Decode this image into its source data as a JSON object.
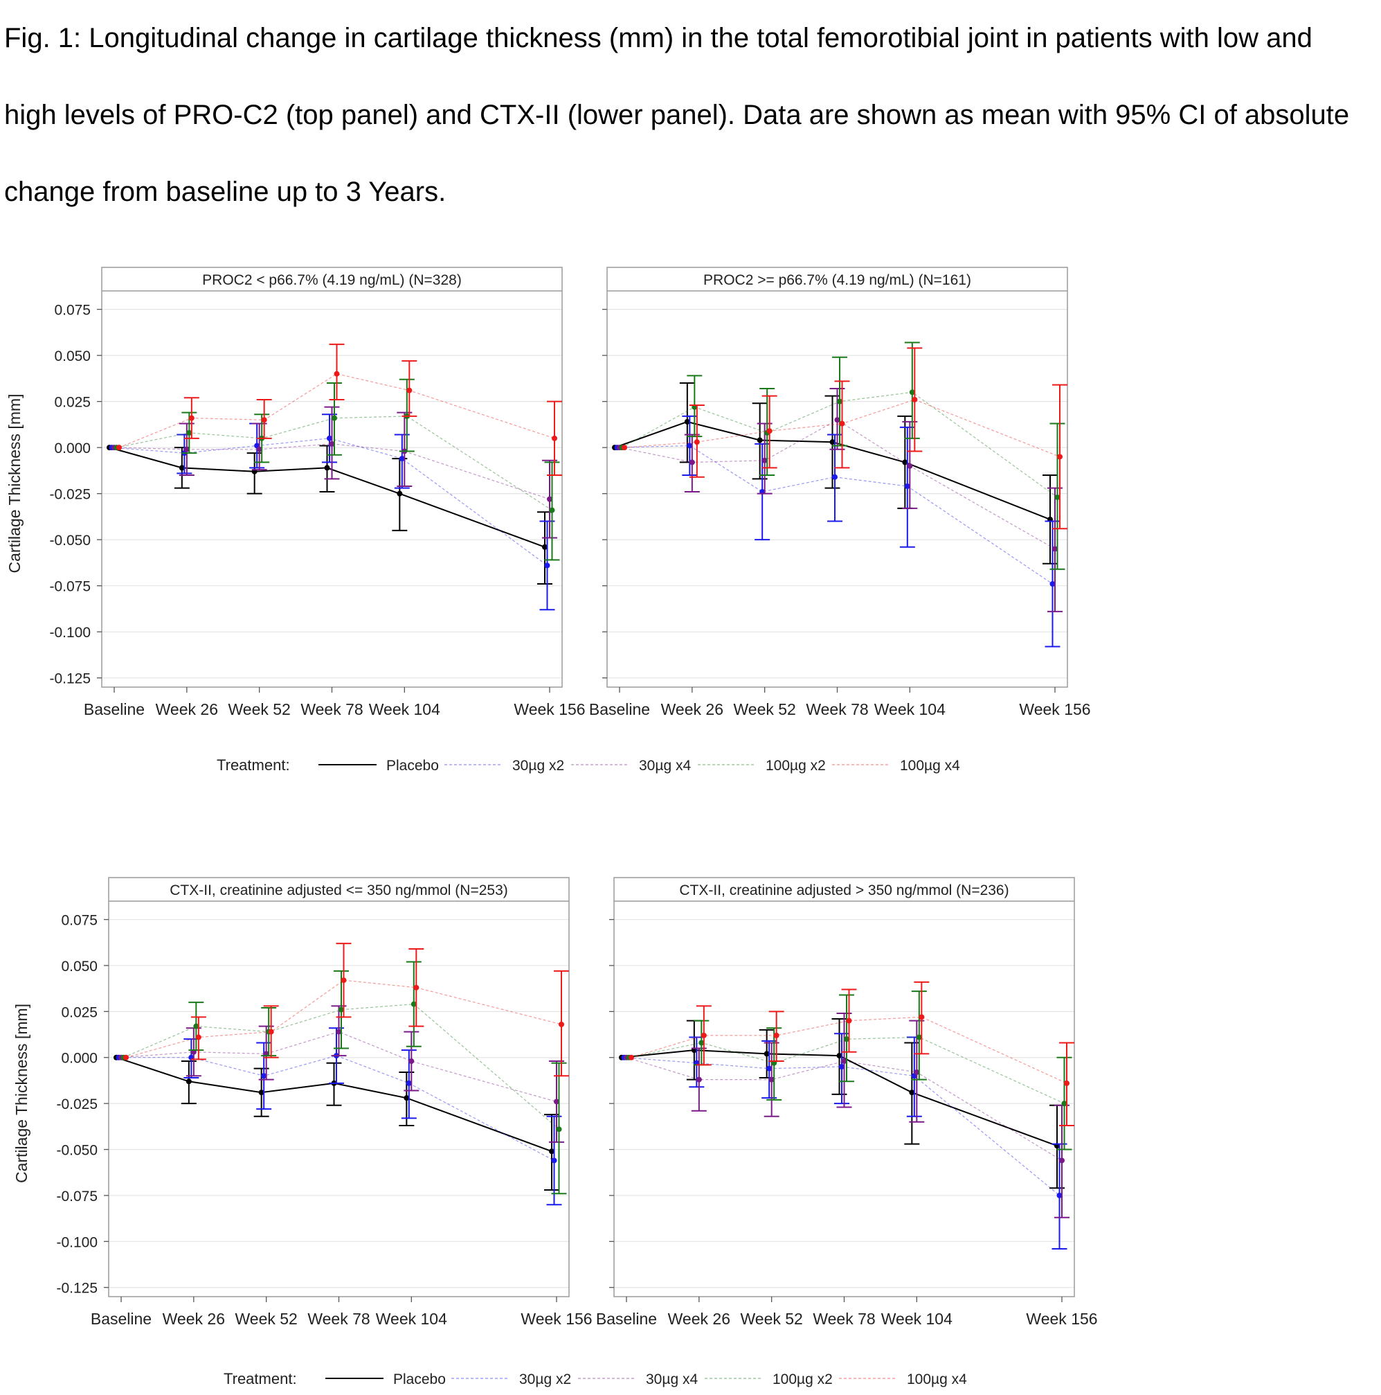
{
  "caption": {
    "line1": "Fig. 1: Longitudinal change in cartilage thickness (mm) in the total femorotibial joint in patients with low and",
    "line2": "high levels of PRO-C2 (top panel) and CTX-II (lower panel). Data are shown as mean with 95% CI of absolute",
    "line3": "change from baseline up to 3 Years."
  },
  "colors": {
    "Placebo": "#000000",
    "30µg x2": "#1a1aee",
    "30µg x4": "#7a1a88",
    "100µg x2": "#1a7a1a",
    "100µg x4": "#ee1a1a",
    "frame": "#9a9a9a",
    "grid": "#e4e4e4"
  },
  "legend": {
    "title": "Treatment:",
    "entries": [
      "Placebo",
      "30µg x2",
      "30µg x4",
      "100µg x2",
      "100µg x4"
    ]
  },
  "chart_data": [
    {
      "type": "line",
      "title": "PROC2 < p66.7% (4.19 ng/mL) (N=328)",
      "ylabel": "Cartilage Thickness [mm]",
      "xlabel": "",
      "ylim": [
        -0.13,
        0.085
      ],
      "yticks": [
        "0.075",
        "0.050",
        "0.025",
        "0.000",
        "-0.025",
        "-0.050",
        "-0.075",
        "-0.100",
        "-0.125"
      ],
      "categories": [
        "Baseline",
        "Week 26",
        "Week 52",
        "Week 78",
        "Week 104",
        "Week 156"
      ],
      "x_weeks": [
        0,
        26,
        52,
        78,
        104,
        156
      ],
      "grid": true,
      "series": [
        {
          "name": "Placebo",
          "values": [
            0.0,
            -0.011,
            -0.013,
            -0.011,
            -0.025,
            -0.054
          ],
          "lower": [
            0.0,
            -0.022,
            -0.025,
            -0.024,
            -0.045,
            -0.074
          ],
          "upper": [
            0.0,
            0.0,
            -0.003,
            0.001,
            -0.006,
            -0.035
          ]
        },
        {
          "name": "30µg x2",
          "values": [
            0.0,
            -0.003,
            0.001,
            0.005,
            -0.006,
            -0.064
          ],
          "lower": [
            0.0,
            -0.014,
            -0.011,
            -0.008,
            -0.022,
            -0.088
          ],
          "upper": [
            0.0,
            0.007,
            0.013,
            0.018,
            0.007,
            -0.04
          ]
        },
        {
          "name": "30µg x4",
          "values": [
            0.0,
            -0.001,
            -0.001,
            0.002,
            -0.002,
            -0.028
          ],
          "lower": [
            0.0,
            -0.015,
            -0.012,
            -0.017,
            -0.021,
            -0.049
          ],
          "upper": [
            0.0,
            0.013,
            0.013,
            0.022,
            0.019,
            -0.007
          ]
        },
        {
          "name": "100µg x2",
          "values": [
            0.0,
            0.008,
            0.005,
            0.016,
            0.017,
            -0.034
          ],
          "lower": [
            0.0,
            -0.003,
            -0.008,
            -0.004,
            -0.002,
            -0.061
          ],
          "upper": [
            0.0,
            0.019,
            0.018,
            0.035,
            0.037,
            -0.008
          ]
        },
        {
          "name": "100µg x4",
          "values": [
            0.0,
            0.016,
            0.015,
            0.04,
            0.031,
            0.005
          ],
          "lower": [
            0.0,
            0.005,
            0.005,
            0.026,
            0.017,
            -0.015
          ],
          "upper": [
            0.0,
            0.027,
            0.026,
            0.056,
            0.047,
            0.025
          ]
        }
      ]
    },
    {
      "type": "line",
      "title": "PROC2 >= p66.7% (4.19 ng/mL) (N=161)",
      "ylabel": "",
      "xlabel": "",
      "ylim": [
        -0.13,
        0.085
      ],
      "categories": [
        "Baseline",
        "Week 26",
        "Week 52",
        "Week 78",
        "Week 104",
        "Week 156"
      ],
      "x_weeks": [
        0,
        26,
        52,
        78,
        104,
        156
      ],
      "grid": true,
      "series": [
        {
          "name": "Placebo",
          "values": [
            0.0,
            0.014,
            0.004,
            0.003,
            -0.008,
            -0.039
          ],
          "lower": [
            0.0,
            -0.008,
            -0.017,
            -0.022,
            -0.033,
            -0.063
          ],
          "upper": [
            0.0,
            0.035,
            0.024,
            0.028,
            0.017,
            -0.015
          ]
        },
        {
          "name": "30µg x2",
          "values": [
            0.0,
            0.001,
            -0.024,
            -0.016,
            -0.021,
            -0.074
          ],
          "lower": [
            0.0,
            -0.015,
            -0.05,
            -0.04,
            -0.054,
            -0.108
          ],
          "upper": [
            0.0,
            0.017,
            0.002,
            0.007,
            0.011,
            -0.04
          ]
        },
        {
          "name": "30µg x4",
          "values": [
            0.0,
            -0.008,
            -0.007,
            0.015,
            -0.01,
            -0.055
          ],
          "lower": [
            0.0,
            -0.024,
            -0.025,
            -0.001,
            -0.033,
            -0.089
          ],
          "upper": [
            0.0,
            0.007,
            0.013,
            0.032,
            0.014,
            -0.022
          ]
        },
        {
          "name": "100µg x2",
          "values": [
            0.0,
            0.022,
            0.008,
            0.025,
            0.03,
            -0.027
          ],
          "lower": [
            0.0,
            0.006,
            -0.015,
            0.001,
            0.005,
            -0.066
          ],
          "upper": [
            0.0,
            0.039,
            0.032,
            0.049,
            0.057,
            0.013
          ]
        },
        {
          "name": "100µg x4",
          "values": [
            0.0,
            0.003,
            0.009,
            0.013,
            0.026,
            -0.005
          ],
          "lower": [
            0.0,
            -0.016,
            -0.011,
            -0.011,
            -0.002,
            -0.044
          ],
          "upper": [
            0.0,
            0.023,
            0.028,
            0.036,
            0.054,
            0.034
          ]
        }
      ]
    },
    {
      "type": "line",
      "title": "CTX-II, creatinine adjusted <= 350 ng/mmol (N=253)",
      "ylabel": "Cartilage Thickness [mm]",
      "xlabel": "",
      "ylim": [
        -0.13,
        0.085
      ],
      "yticks": [
        "0.075",
        "0.050",
        "0.025",
        "0.000",
        "-0.025",
        "-0.050",
        "-0.075",
        "-0.100",
        "-0.125"
      ],
      "categories": [
        "Baseline",
        "Week 26",
        "Week 52",
        "Week 78",
        "Week 104",
        "Week 156"
      ],
      "x_weeks": [
        0,
        26,
        52,
        78,
        104,
        156
      ],
      "grid": true,
      "series": [
        {
          "name": "Placebo",
          "values": [
            0.0,
            -0.013,
            -0.019,
            -0.014,
            -0.022,
            -0.051
          ],
          "lower": [
            0.0,
            -0.025,
            -0.032,
            -0.026,
            -0.037,
            -0.072
          ],
          "upper": [
            0.0,
            -0.002,
            -0.006,
            -0.003,
            -0.008,
            -0.031
          ]
        },
        {
          "name": "30µg x2",
          "values": [
            0.0,
            0.0,
            -0.01,
            0.001,
            -0.014,
            -0.056
          ],
          "lower": [
            0.0,
            -0.011,
            -0.028,
            -0.014,
            -0.033,
            -0.08
          ],
          "upper": [
            0.0,
            0.01,
            0.008,
            0.016,
            0.004,
            -0.032
          ]
        },
        {
          "name": "30µg x4",
          "values": [
            0.0,
            0.003,
            0.002,
            0.014,
            -0.002,
            -0.024
          ],
          "lower": [
            0.0,
            -0.01,
            -0.012,
            0.001,
            -0.018,
            -0.046
          ],
          "upper": [
            0.0,
            0.016,
            0.017,
            0.028,
            0.014,
            -0.002
          ]
        },
        {
          "name": "100µg x2",
          "values": [
            0.0,
            0.017,
            0.014,
            0.026,
            0.029,
            -0.039
          ],
          "lower": [
            0.0,
            0.004,
            0.001,
            0.005,
            0.006,
            -0.074
          ],
          "upper": [
            0.0,
            0.03,
            0.027,
            0.047,
            0.052,
            -0.003
          ]
        },
        {
          "name": "100µg x4",
          "values": [
            0.0,
            0.011,
            0.014,
            0.042,
            0.038,
            0.018
          ],
          "lower": [
            0.0,
            -0.001,
            0.0,
            0.022,
            0.017,
            -0.01
          ],
          "upper": [
            0.0,
            0.022,
            0.028,
            0.062,
            0.059,
            0.047
          ]
        }
      ]
    },
    {
      "type": "line",
      "title": "CTX-II, creatinine adjusted > 350 ng/mmol (N=236)",
      "ylabel": "",
      "xlabel": "",
      "ylim": [
        -0.13,
        0.085
      ],
      "categories": [
        "Baseline",
        "Week 26",
        "Week 52",
        "Week 78",
        "Week 104",
        "Week 156"
      ],
      "x_weeks": [
        0,
        26,
        52,
        78,
        104,
        156
      ],
      "grid": true,
      "series": [
        {
          "name": "Placebo",
          "values": [
            0.0,
            0.004,
            0.002,
            0.001,
            -0.019,
            -0.048
          ],
          "lower": [
            0.0,
            -0.012,
            -0.011,
            -0.02,
            -0.047,
            -0.071
          ],
          "upper": [
            0.0,
            0.02,
            0.015,
            0.021,
            0.008,
            -0.026
          ]
        },
        {
          "name": "30µg x2",
          "values": [
            0.0,
            -0.003,
            -0.006,
            -0.005,
            -0.01,
            -0.075
          ],
          "lower": [
            0.0,
            -0.016,
            -0.022,
            -0.025,
            -0.032,
            -0.104
          ],
          "upper": [
            0.0,
            0.011,
            0.009,
            0.013,
            0.011,
            -0.047
          ]
        },
        {
          "name": "30µg x4",
          "values": [
            0.0,
            -0.012,
            -0.012,
            -0.002,
            -0.008,
            -0.056
          ],
          "lower": [
            0.0,
            -0.029,
            -0.032,
            -0.027,
            -0.035,
            -0.087
          ],
          "upper": [
            0.0,
            0.005,
            0.008,
            0.024,
            0.02,
            -0.026
          ]
        },
        {
          "name": "100µg x2",
          "values": [
            0.0,
            0.008,
            -0.003,
            0.01,
            0.011,
            -0.025
          ],
          "lower": [
            0.0,
            -0.004,
            -0.023,
            -0.013,
            -0.012,
            -0.05
          ],
          "upper": [
            0.0,
            0.02,
            0.016,
            0.034,
            0.036,
            0.0
          ]
        },
        {
          "name": "100µg x4",
          "values": [
            0.0,
            0.012,
            0.012,
            0.02,
            0.022,
            -0.014
          ],
          "lower": [
            0.0,
            -0.004,
            -0.002,
            0.003,
            0.002,
            -0.037
          ],
          "upper": [
            0.0,
            0.028,
            0.025,
            0.037,
            0.041,
            0.008
          ]
        }
      ]
    }
  ]
}
